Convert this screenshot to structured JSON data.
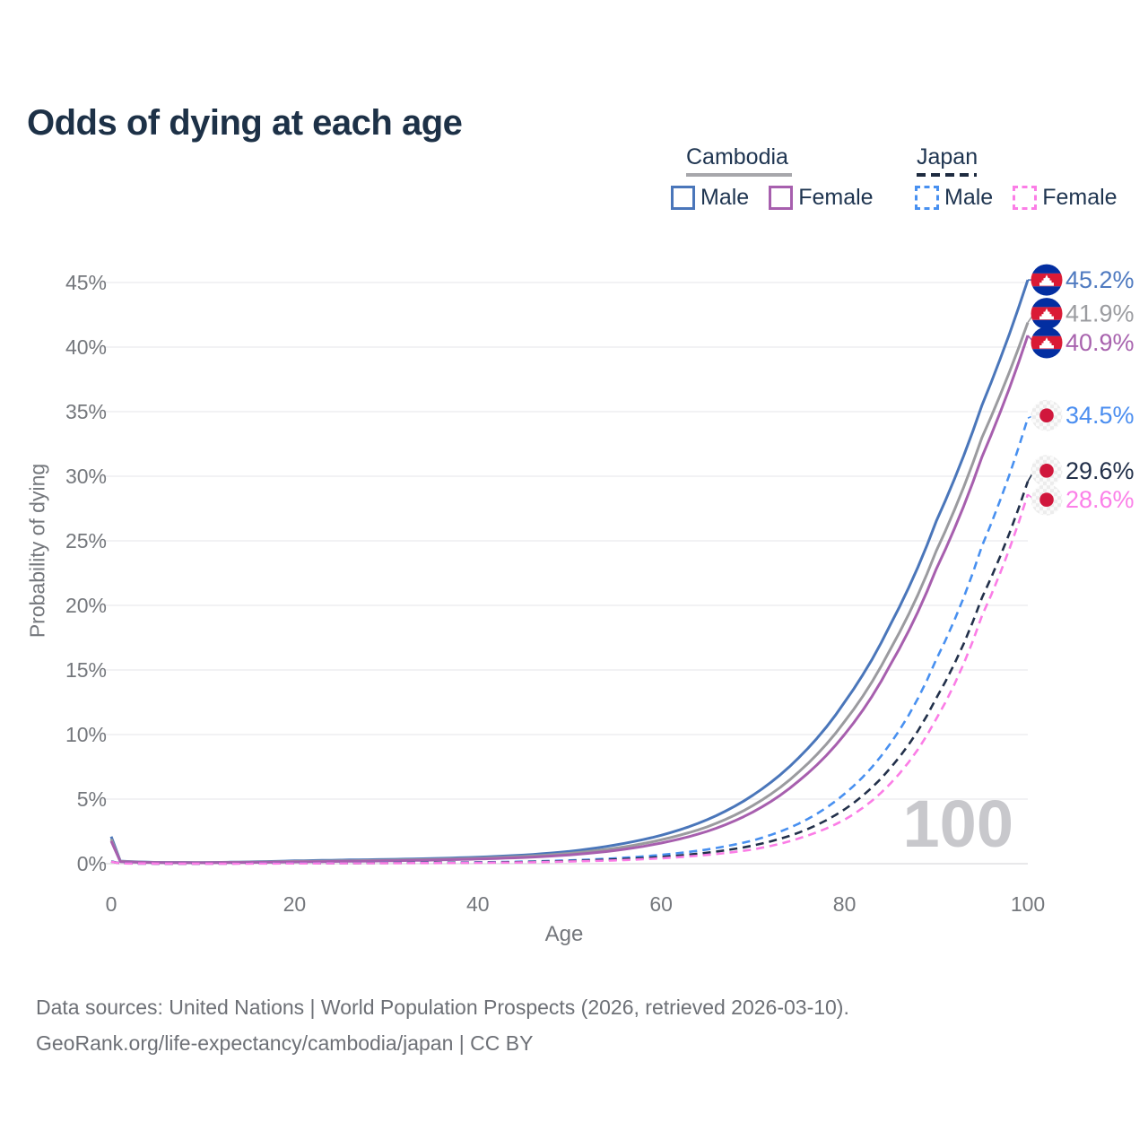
{
  "page": {
    "title": "Odds of dying at each age",
    "watermark_age": "100",
    "footer_line1": "Data sources: United Nations | World Population Prospects (2026, retrieved 2026-03-10).",
    "footer_line2": "GeoRank.org/life-expectancy/cambodia/japan | CC BY"
  },
  "legend": {
    "cambodia": {
      "label": "Cambodia",
      "male": "Male",
      "female": "Female"
    },
    "japan": {
      "label": "Japan",
      "male": "Male",
      "female": "Female"
    }
  },
  "colors": {
    "title": "#1d3147",
    "axis_text": "#74777c",
    "grid": "#e9e9ed",
    "grid_zero": "#d9d9dd",
    "watermark": "#c8c8cc",
    "footer_text": "#6d7076",
    "cambodia_male": "#4a76ba",
    "cambodia_both": "#9b9b9f",
    "cambodia_female": "#a75fae",
    "japan_male": "#4890f0",
    "japan_both": "#22304a",
    "japan_female": "#fb7de6",
    "flag_cambodia_blue": "#032ea1",
    "flag_cambodia_red": "#da1a35",
    "flag_japan_red": "#d0173c"
  },
  "chart_data": {
    "type": "line",
    "title": "Odds of dying at each age",
    "xlabel": "Age",
    "ylabel": "Probability of dying",
    "xlim": [
      0,
      100
    ],
    "ylim_percent": [
      0,
      45
    ],
    "x_ticks": [
      0,
      20,
      40,
      60,
      80,
      100
    ],
    "x_tick_labels": [
      "0",
      "20",
      "40",
      "60",
      "80",
      "100"
    ],
    "y_ticks": [
      0,
      5,
      10,
      15,
      20,
      25,
      30,
      35,
      40,
      45
    ],
    "y_tick_labels": [
      "0%",
      "5%",
      "10%",
      "15%",
      "20%",
      "25%",
      "30%",
      "35%",
      "40%",
      "45%"
    ],
    "grid": "horizontal-only",
    "legend_position": "top-right",
    "current_age_indicator": "100",
    "series": [
      {
        "name": "Cambodia Male",
        "country": "Cambodia",
        "sex": "Male",
        "line": "solid",
        "color": "#4a76ba",
        "label_color": "#4f7ac0",
        "end_label": "45.2%",
        "points": [
          [
            0,
            2.1
          ],
          [
            1,
            0.2
          ],
          [
            5,
            0.1
          ],
          [
            10,
            0.09
          ],
          [
            15,
            0.14
          ],
          [
            20,
            0.22
          ],
          [
            25,
            0.28
          ],
          [
            30,
            0.33
          ],
          [
            35,
            0.4
          ],
          [
            40,
            0.5
          ],
          [
            45,
            0.67
          ],
          [
            50,
            0.95
          ],
          [
            55,
            1.45
          ],
          [
            60,
            2.2
          ],
          [
            65,
            3.4
          ],
          [
            70,
            5.3
          ],
          [
            75,
            8.2
          ],
          [
            80,
            12.5
          ],
          [
            85,
            18.5
          ],
          [
            90,
            26.5
          ],
          [
            95,
            35.5
          ],
          [
            100,
            45.2
          ]
        ]
      },
      {
        "name": "Cambodia Both sexes",
        "country": "Cambodia",
        "sex": "Both",
        "line": "solid",
        "color": "#9b9b9f",
        "label_color": "#9b9ca0",
        "end_label": "41.9%",
        "points": [
          [
            0,
            1.9
          ],
          [
            1,
            0.18
          ],
          [
            5,
            0.09
          ],
          [
            10,
            0.08
          ],
          [
            15,
            0.12
          ],
          [
            20,
            0.18
          ],
          [
            25,
            0.22
          ],
          [
            30,
            0.27
          ],
          [
            35,
            0.33
          ],
          [
            40,
            0.42
          ],
          [
            45,
            0.56
          ],
          [
            50,
            0.8
          ],
          [
            55,
            1.2
          ],
          [
            60,
            1.85
          ],
          [
            65,
            2.85
          ],
          [
            70,
            4.5
          ],
          [
            75,
            7.1
          ],
          [
            80,
            11.0
          ],
          [
            85,
            16.6
          ],
          [
            90,
            24.2
          ],
          [
            95,
            33.0
          ],
          [
            100,
            41.9
          ]
        ]
      },
      {
        "name": "Cambodia Female",
        "country": "Cambodia",
        "sex": "Female",
        "line": "solid",
        "color": "#a75fae",
        "label_color": "#a863ae",
        "end_label": "40.9%",
        "points": [
          [
            0,
            1.75
          ],
          [
            1,
            0.16
          ],
          [
            5,
            0.08
          ],
          [
            10,
            0.07
          ],
          [
            15,
            0.1
          ],
          [
            20,
            0.14
          ],
          [
            25,
            0.18
          ],
          [
            30,
            0.22
          ],
          [
            35,
            0.28
          ],
          [
            40,
            0.36
          ],
          [
            45,
            0.48
          ],
          [
            50,
            0.68
          ],
          [
            55,
            1.02
          ],
          [
            60,
            1.6
          ],
          [
            65,
            2.5
          ],
          [
            70,
            4.0
          ],
          [
            75,
            6.4
          ],
          [
            80,
            10.0
          ],
          [
            85,
            15.4
          ],
          [
            90,
            22.8
          ],
          [
            95,
            31.5
          ],
          [
            100,
            40.9
          ]
        ]
      },
      {
        "name": "Japan Male",
        "country": "Japan",
        "sex": "Male",
        "line": "dashed",
        "color": "#4890f0",
        "label_color": "#4b8ef0",
        "end_label": "34.5%",
        "points": [
          [
            0,
            0.18
          ],
          [
            1,
            0.03
          ],
          [
            5,
            0.01
          ],
          [
            10,
            0.01
          ],
          [
            15,
            0.02
          ],
          [
            20,
            0.04
          ],
          [
            25,
            0.05
          ],
          [
            30,
            0.06
          ],
          [
            35,
            0.08
          ],
          [
            40,
            0.11
          ],
          [
            45,
            0.16
          ],
          [
            50,
            0.26
          ],
          [
            55,
            0.42
          ],
          [
            60,
            0.68
          ],
          [
            65,
            1.1
          ],
          [
            70,
            1.8
          ],
          [
            75,
            3.1
          ],
          [
            80,
            5.4
          ],
          [
            85,
            9.3
          ],
          [
            90,
            15.8
          ],
          [
            95,
            24.6
          ],
          [
            100,
            34.5
          ]
        ]
      },
      {
        "name": "Japan Both sexes",
        "country": "Japan",
        "sex": "Both",
        "line": "dashed",
        "color": "#22304a",
        "label_color": "#22304a",
        "end_label": "29.6%",
        "points": [
          [
            0,
            0.16
          ],
          [
            1,
            0.03
          ],
          [
            5,
            0.01
          ],
          [
            10,
            0.01
          ],
          [
            15,
            0.02
          ],
          [
            20,
            0.03
          ],
          [
            25,
            0.04
          ],
          [
            30,
            0.05
          ],
          [
            35,
            0.07
          ],
          [
            40,
            0.09
          ],
          [
            45,
            0.13
          ],
          [
            50,
            0.21
          ],
          [
            55,
            0.33
          ],
          [
            60,
            0.52
          ],
          [
            65,
            0.85
          ],
          [
            70,
            1.4
          ],
          [
            75,
            2.4
          ],
          [
            80,
            4.2
          ],
          [
            85,
            7.4
          ],
          [
            90,
            12.8
          ],
          [
            95,
            20.6
          ],
          [
            100,
            29.6
          ]
        ]
      },
      {
        "name": "Japan Female",
        "country": "Japan",
        "sex": "Female",
        "line": "dashed",
        "color": "#fb7de6",
        "label_color": "#fb80e8",
        "end_label": "28.6%",
        "points": [
          [
            0,
            0.15
          ],
          [
            1,
            0.02
          ],
          [
            5,
            0.01
          ],
          [
            10,
            0.01
          ],
          [
            15,
            0.01
          ],
          [
            20,
            0.02
          ],
          [
            25,
            0.03
          ],
          [
            30,
            0.04
          ],
          [
            35,
            0.05
          ],
          [
            40,
            0.07
          ],
          [
            45,
            0.1
          ],
          [
            50,
            0.17
          ],
          [
            55,
            0.26
          ],
          [
            60,
            0.42
          ],
          [
            65,
            0.68
          ],
          [
            70,
            1.1
          ],
          [
            75,
            1.95
          ],
          [
            80,
            3.4
          ],
          [
            85,
            6.2
          ],
          [
            90,
            11.2
          ],
          [
            95,
            19.2
          ],
          [
            100,
            28.6
          ]
        ]
      }
    ]
  }
}
